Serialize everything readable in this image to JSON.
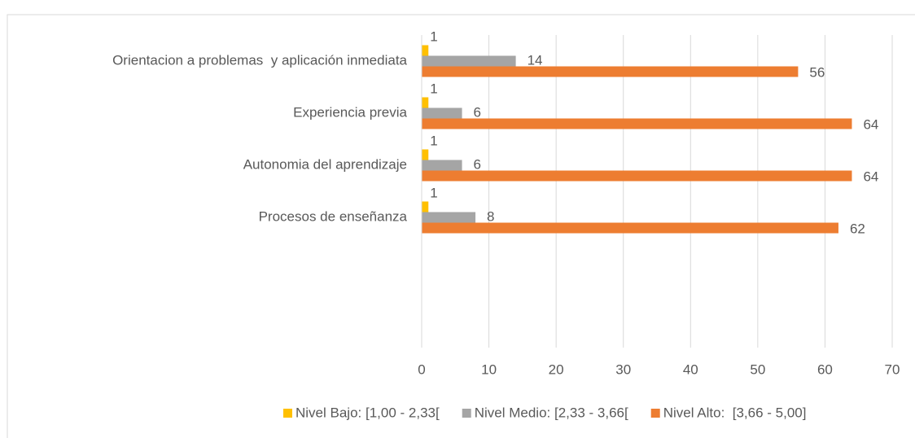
{
  "chart_data": {
    "type": "hbar",
    "categories": [
      "Orientacion a problemas  y aplicación inmediata",
      "Experiencia previa",
      "Autonomia del aprendizaje",
      "Procesos de enseñanza",
      null,
      null
    ],
    "series": [
      {
        "name": "Nivel Bajo: [1,00 - 2,33[",
        "color": "#ffc000",
        "values": [
          1,
          1,
          1,
          1,
          null,
          null
        ]
      },
      {
        "name": "Nivel Medio: [2,33 - 3,66[",
        "color": "#a5a5a5",
        "values": [
          14,
          6,
          6,
          8,
          null,
          null
        ]
      },
      {
        "name": "Nivel Alto:  [3,66 - 5,00]",
        "color": "#ed7d31",
        "values": [
          56,
          64,
          64,
          62,
          null,
          null
        ]
      }
    ],
    "xlim": [
      0,
      70
    ],
    "xticks": [
      0,
      10,
      20,
      30,
      40,
      50,
      60,
      70
    ],
    "grid": true,
    "legend": "bottom"
  }
}
